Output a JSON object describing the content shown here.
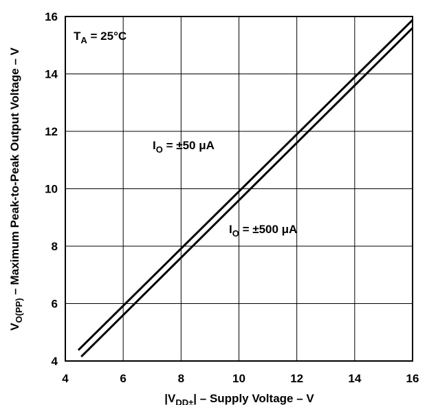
{
  "chart_data": {
    "type": "line",
    "xlabel": {
      "pre": "|V",
      "sub": "DD±",
      "post": "| – Supply Voltage – V"
    },
    "ylabel": {
      "pre": "V",
      "sub": "O(PP)",
      "post": " – Maximum Peak-to-Peak Output Voltage – V"
    },
    "xlim": [
      4,
      16
    ],
    "ylim": [
      4,
      16
    ],
    "xticks": [
      "4",
      "6",
      "8",
      "10",
      "12",
      "14",
      "16"
    ],
    "yticks": [
      "4",
      "6",
      "8",
      "10",
      "12",
      "14",
      "16"
    ],
    "grid": true,
    "annotation": {
      "pre": "T",
      "sub": "A",
      "post": " = 25°C"
    },
    "series": [
      {
        "name": {
          "pre": "I",
          "sub": "O",
          "post": " = ±50 μA"
        },
        "points": [
          [
            4.45,
            4.38
          ],
          [
            16.0,
            15.88
          ]
        ]
      },
      {
        "name": {
          "pre": "I",
          "sub": "O",
          "post": " = ±500 μA"
        },
        "points": [
          [
            4.55,
            4.15
          ],
          [
            16.0,
            15.6
          ]
        ]
      }
    ]
  }
}
